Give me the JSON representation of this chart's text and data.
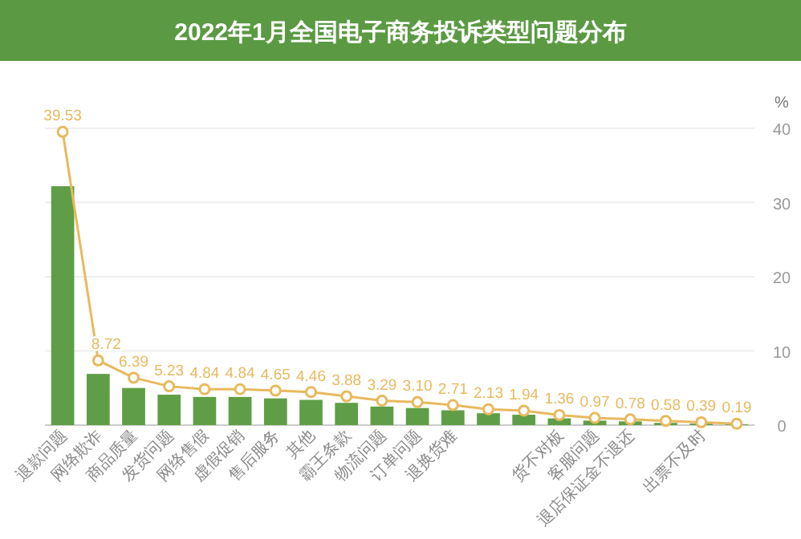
{
  "chart_data": {
    "type": "bar",
    "title": "2022年1月全国电子商务投诉类型问题分布",
    "ylabel": "%",
    "categories": [
      "退款问题",
      "网络欺诈",
      "商品质量",
      "发货问题",
      "网络售假",
      "虚假促销",
      "售后服务",
      "其他",
      "霸王条款",
      "物流问题",
      "订单问题",
      "退换货难",
      null,
      null,
      "货不对板",
      "客服问题",
      "退店保证金不退还",
      null,
      "出票不及时",
      null
    ],
    "series": [
      {
        "color": "#5f9e46",
        "values": [
          32.2,
          6.9,
          5.0,
          4.1,
          3.8,
          3.8,
          3.6,
          3.4,
          3.0,
          2.5,
          2.3,
          2.0,
          1.6,
          1.4,
          0.9,
          0.6,
          0.5,
          0.3,
          0.2,
          0.1
        ]
      },
      {
        "type": "line",
        "color": "#e8b95e",
        "marker": "circle",
        "data_labels": true,
        "values": [
          39.53,
          8.72,
          6.39,
          5.23,
          4.84,
          4.84,
          4.65,
          4.46,
          3.88,
          3.29,
          3.1,
          2.71,
          2.13,
          1.94,
          1.36,
          0.97,
          0.78,
          0.58,
          0.39,
          0.19
        ],
        "value_labels": [
          "39.53",
          "8.72",
          "6.39",
          "5.23",
          "4.84",
          "4.84",
          "4.65",
          "4.46",
          "3.88",
          "3.29",
          "3.10",
          "2.71",
          "2.13",
          "1.94",
          "1.36",
          "0.97",
          "0.78",
          "0.58",
          "0.39",
          "0.19"
        ]
      }
    ],
    "ylim": [
      0,
      40
    ],
    "yticks": [
      0,
      10,
      20,
      30,
      40
    ],
    "grid": "y"
  }
}
